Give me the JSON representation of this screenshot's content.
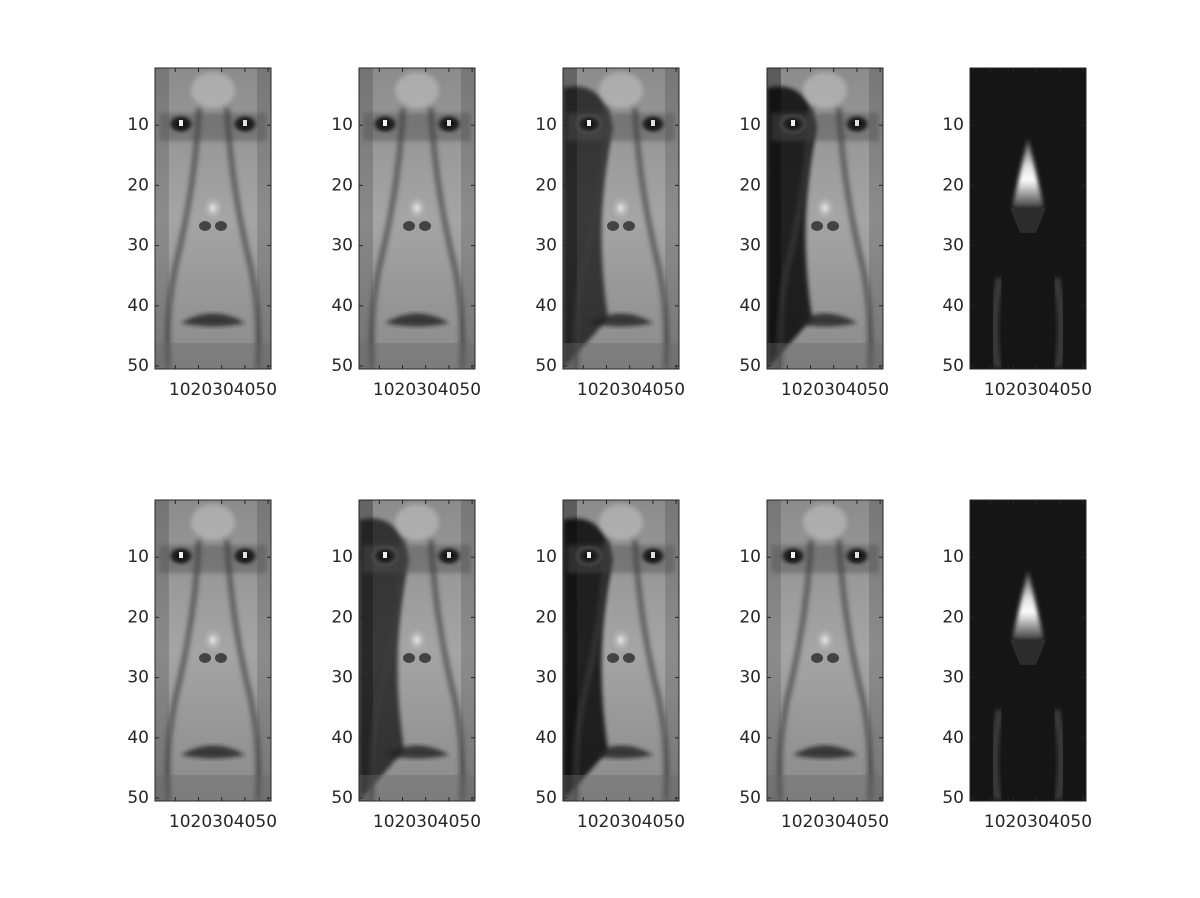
{
  "figure": {
    "grid_rows": 2,
    "grid_cols": 5,
    "colormap": "gray",
    "image_rows": 50,
    "image_cols": 20,
    "background": "#ffffff",
    "axis_color": "#262626"
  },
  "panels": [
    {
      "row": 1,
      "col": 1,
      "content": "face-grayscale-image",
      "ytick_labels": [
        "10",
        "20",
        "30",
        "40",
        "50"
      ],
      "xtick_label": "1020304050"
    },
    {
      "row": 1,
      "col": 2,
      "content": "face-grayscale-image",
      "ytick_labels": [
        "10",
        "20",
        "30",
        "40",
        "50"
      ],
      "xtick_label": "1020304050"
    },
    {
      "row": 1,
      "col": 3,
      "content": "face-grayscale-image",
      "ytick_labels": [
        "10",
        "20",
        "30",
        "40",
        "50"
      ],
      "xtick_label": "1020304050"
    },
    {
      "row": 1,
      "col": 4,
      "content": "face-grayscale-image",
      "ytick_labels": [
        "10",
        "20",
        "30",
        "40",
        "50"
      ],
      "xtick_label": "1020304050"
    },
    {
      "row": 1,
      "col": 5,
      "content": "nose-bright-triangle-image",
      "ytick_labels": [
        "10",
        "20",
        "30",
        "40",
        "50"
      ],
      "xtick_label": "1020304050"
    },
    {
      "row": 2,
      "col": 1,
      "content": "face-grayscale-image",
      "ytick_labels": [
        "10",
        "20",
        "30",
        "40",
        "50"
      ],
      "xtick_label": "1020304050"
    },
    {
      "row": 2,
      "col": 2,
      "content": "face-grayscale-image",
      "ytick_labels": [
        "10",
        "20",
        "30",
        "40",
        "50"
      ],
      "xtick_label": "1020304050"
    },
    {
      "row": 2,
      "col": 3,
      "content": "face-grayscale-image",
      "ytick_labels": [
        "10",
        "20",
        "30",
        "40",
        "50"
      ],
      "xtick_label": "1020304050"
    },
    {
      "row": 2,
      "col": 4,
      "content": "face-grayscale-image",
      "ytick_labels": [
        "10",
        "20",
        "30",
        "40",
        "50"
      ],
      "xtick_label": "1020304050"
    },
    {
      "row": 2,
      "col": 5,
      "content": "nose-bright-triangle-image",
      "ytick_labels": [
        "10",
        "20",
        "30",
        "40",
        "50"
      ],
      "xtick_label": "1020304050"
    }
  ]
}
